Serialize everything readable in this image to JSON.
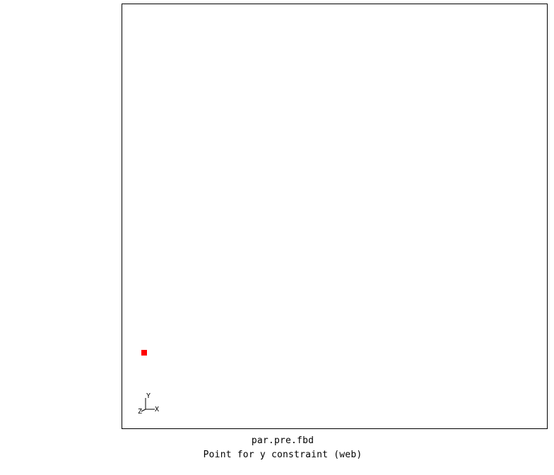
{
  "viewport": {
    "background": "#ffffff",
    "border_color": "#000000"
  },
  "node": {
    "color": "#ff0000"
  },
  "axes": {
    "x_label": "X",
    "y_label": "Y",
    "z_label": "Z"
  },
  "footer": {
    "filename": "par.pre.fbd",
    "status": "Point for y constraint (web)"
  }
}
